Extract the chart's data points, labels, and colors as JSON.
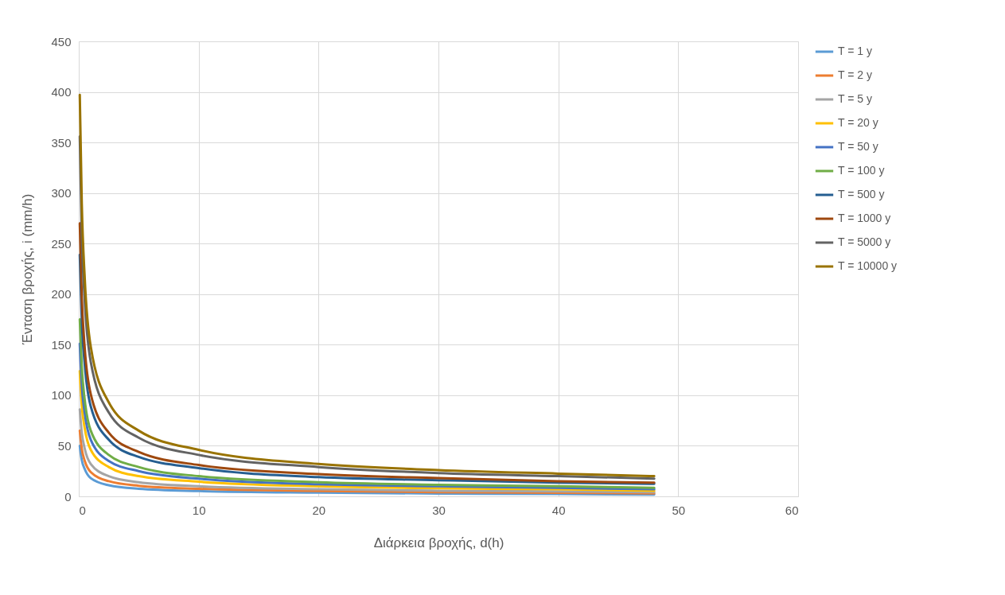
{
  "chart_data": {
    "type": "line",
    "xlabel": "Διάρκεια βροχής, d(h)",
    "ylabel": "Ένταση βροχής, i (mm/h)",
    "x": [
      0.083,
      0.25,
      0.5,
      1,
      2.5,
      5,
      10,
      20,
      30,
      40,
      48
    ],
    "xlim": [
      0,
      60
    ],
    "xticks": [
      0,
      10,
      20,
      30,
      40,
      50,
      60
    ],
    "ylim": [
      0,
      450
    ],
    "yticks": [
      0,
      50,
      100,
      150,
      200,
      250,
      300,
      350,
      400,
      450
    ],
    "grid": true,
    "legend": "right",
    "marker": "none",
    "line_style": "solid",
    "series": [
      {
        "name": "T = 1 y",
        "color": "#5b9bd5",
        "values": [
          50,
          36,
          27,
          18,
          11,
          7.5,
          5.3,
          3.7,
          2.8,
          2.3,
          1.8
        ]
      },
      {
        "name": "T = 2 y",
        "color": "#ed7d31",
        "values": [
          65,
          47,
          35,
          24,
          15,
          10.5,
          7.5,
          5.3,
          4.2,
          3.6,
          3.0
        ]
      },
      {
        "name": "T = 5 y",
        "color": "#a5a5a5",
        "values": [
          86,
          63,
          47,
          32,
          20,
          14,
          10,
          7,
          5.6,
          4.9,
          4.2
        ]
      },
      {
        "name": "T = 20 y",
        "color": "#ffc000",
        "values": [
          124,
          90,
          67,
          46,
          29,
          20,
          14.5,
          10,
          8,
          7,
          5.5
        ]
      },
      {
        "name": "T = 50 y",
        "color": "#4472c4",
        "values": [
          151,
          110,
          82,
          56,
          35,
          25,
          17.5,
          12,
          10,
          8.5,
          7
        ]
      },
      {
        "name": "T = 100 y",
        "color": "#70ad47",
        "values": [
          175,
          128,
          95,
          65,
          41,
          29,
          20,
          14,
          11.5,
          10,
          8.5
        ]
      },
      {
        "name": "T = 500 y",
        "color": "#255e91",
        "values": [
          239,
          174,
          130,
          89,
          56,
          39,
          28,
          19,
          16,
          13.5,
          12.4
        ]
      },
      {
        "name": "T = 1000 y",
        "color": "#9e480e",
        "values": [
          270,
          197,
          146,
          101,
          63,
          44,
          31,
          22,
          18,
          15,
          13.5
        ]
      },
      {
        "name": "T = 5000 y",
        "color": "#636363",
        "values": [
          356,
          260,
          193,
          133,
          83,
          58,
          41,
          29,
          23,
          20,
          17.6
        ]
      },
      {
        "name": "T = 10000 y",
        "color": "#997300",
        "values": [
          397,
          290,
          215,
          148,
          93,
          65,
          46,
          32,
          26,
          22.5,
          20
        ]
      }
    ]
  }
}
